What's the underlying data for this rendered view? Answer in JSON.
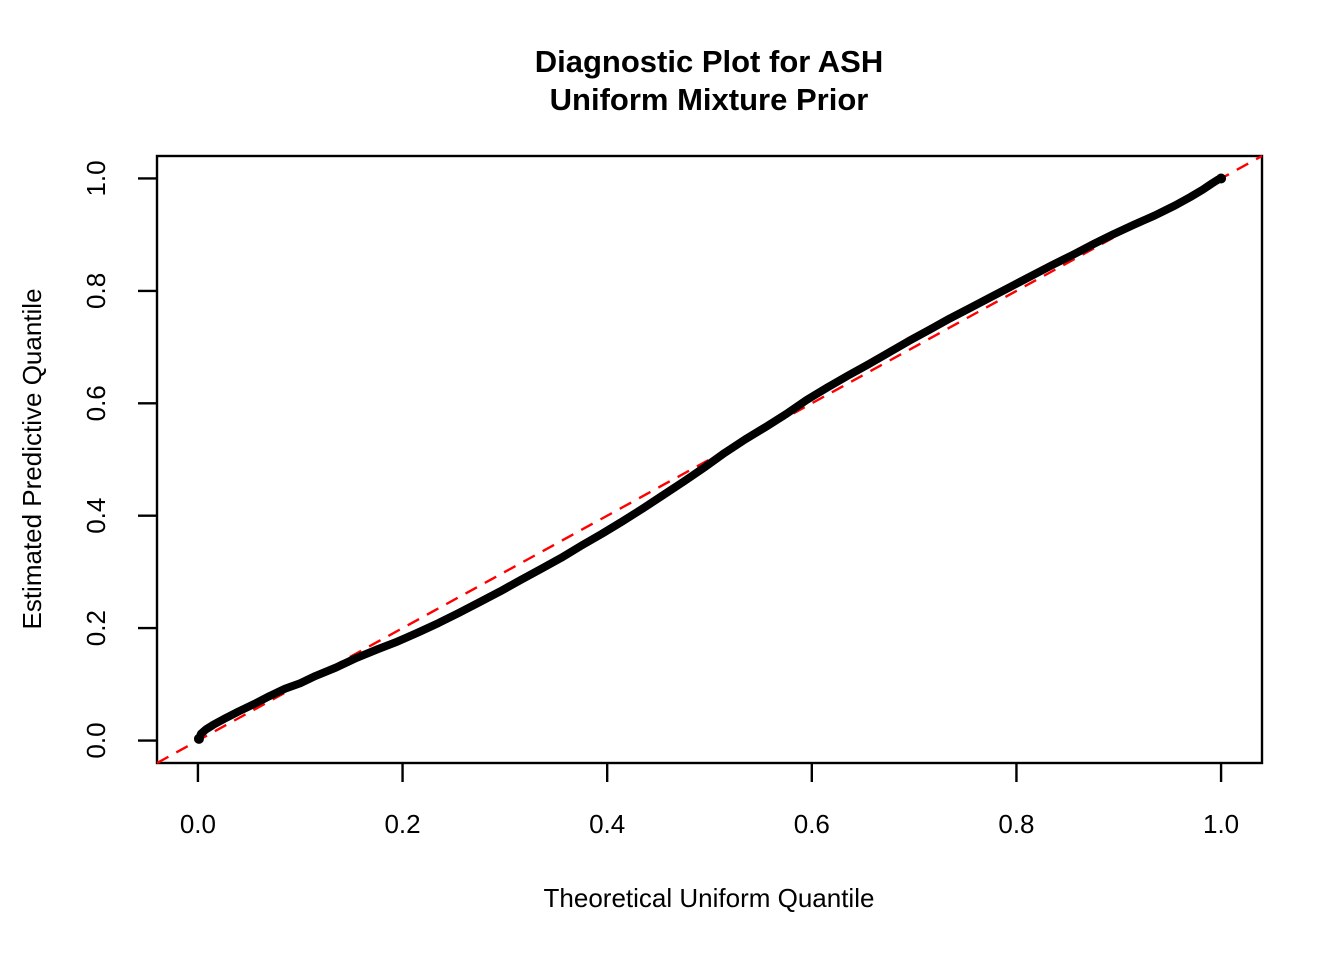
{
  "chart_data": {
    "type": "scatter",
    "title_lines": [
      "Diagnostic Plot for ASH",
      "Uniform Mixture Prior"
    ],
    "xlabel": "Theoretical Uniform Quantile",
    "ylabel": "Estimated Predictive Quantile",
    "xlim": [
      -0.04,
      1.04
    ],
    "ylim": [
      -0.04,
      1.04
    ],
    "grid": false,
    "legend": "none",
    "x_ticks": [
      0.0,
      0.2,
      0.4,
      0.6,
      0.8,
      1.0
    ],
    "x_tick_labels": [
      "0.0",
      "0.2",
      "0.4",
      "0.6",
      "0.8",
      "1.0"
    ],
    "y_ticks": [
      0.0,
      0.2,
      0.4,
      0.6,
      0.8,
      1.0
    ],
    "y_tick_labels": [
      "0.0",
      "0.2",
      "0.4",
      "0.6",
      "0.8",
      "1.0"
    ],
    "point_color": "#000000",
    "frame_color": "#000000",
    "reference_line": {
      "equation": "y = x",
      "style": "dashed",
      "color": "#FF0000",
      "from": [
        -0.04,
        -0.04
      ],
      "to": [
        1.04,
        1.04
      ]
    },
    "series": [
      {
        "name": "estimated-vs-theoretical-quantile",
        "marker": "dense-points",
        "color": "#000000",
        "points": [
          [
            0.001,
            0.003
          ],
          [
            0.003,
            0.012
          ],
          [
            0.008,
            0.02
          ],
          [
            0.015,
            0.028
          ],
          [
            0.025,
            0.038
          ],
          [
            0.04,
            0.052
          ],
          [
            0.055,
            0.065
          ],
          [
            0.07,
            0.079
          ],
          [
            0.085,
            0.092
          ],
          [
            0.1,
            0.102
          ],
          [
            0.115,
            0.115
          ],
          [
            0.135,
            0.13
          ],
          [
            0.155,
            0.147
          ],
          [
            0.175,
            0.162
          ],
          [
            0.195,
            0.176
          ],
          [
            0.215,
            0.192
          ],
          [
            0.235,
            0.209
          ],
          [
            0.255,
            0.227
          ],
          [
            0.275,
            0.246
          ],
          [
            0.295,
            0.265
          ],
          [
            0.315,
            0.285
          ],
          [
            0.335,
            0.305
          ],
          [
            0.355,
            0.325
          ],
          [
            0.375,
            0.347
          ],
          [
            0.395,
            0.368
          ],
          [
            0.415,
            0.39
          ],
          [
            0.435,
            0.413
          ],
          [
            0.455,
            0.437
          ],
          [
            0.475,
            0.461
          ],
          [
            0.495,
            0.486
          ],
          [
            0.515,
            0.512
          ],
          [
            0.535,
            0.536
          ],
          [
            0.555,
            0.558
          ],
          [
            0.575,
            0.581
          ],
          [
            0.595,
            0.606
          ],
          [
            0.615,
            0.628
          ],
          [
            0.635,
            0.649
          ],
          [
            0.655,
            0.669
          ],
          [
            0.675,
            0.69
          ],
          [
            0.695,
            0.711
          ],
          [
            0.715,
            0.731
          ],
          [
            0.735,
            0.751
          ],
          [
            0.755,
            0.77
          ],
          [
            0.775,
            0.789
          ],
          [
            0.795,
            0.808
          ],
          [
            0.815,
            0.827
          ],
          [
            0.835,
            0.846
          ],
          [
            0.855,
            0.864
          ],
          [
            0.875,
            0.883
          ],
          [
            0.895,
            0.901
          ],
          [
            0.915,
            0.918
          ],
          [
            0.935,
            0.934
          ],
          [
            0.955,
            0.952
          ],
          [
            0.97,
            0.967
          ],
          [
            0.982,
            0.98
          ],
          [
            0.991,
            0.991
          ],
          [
            0.997,
            0.998
          ],
          [
            1.0,
            1.0
          ]
        ]
      }
    ]
  }
}
